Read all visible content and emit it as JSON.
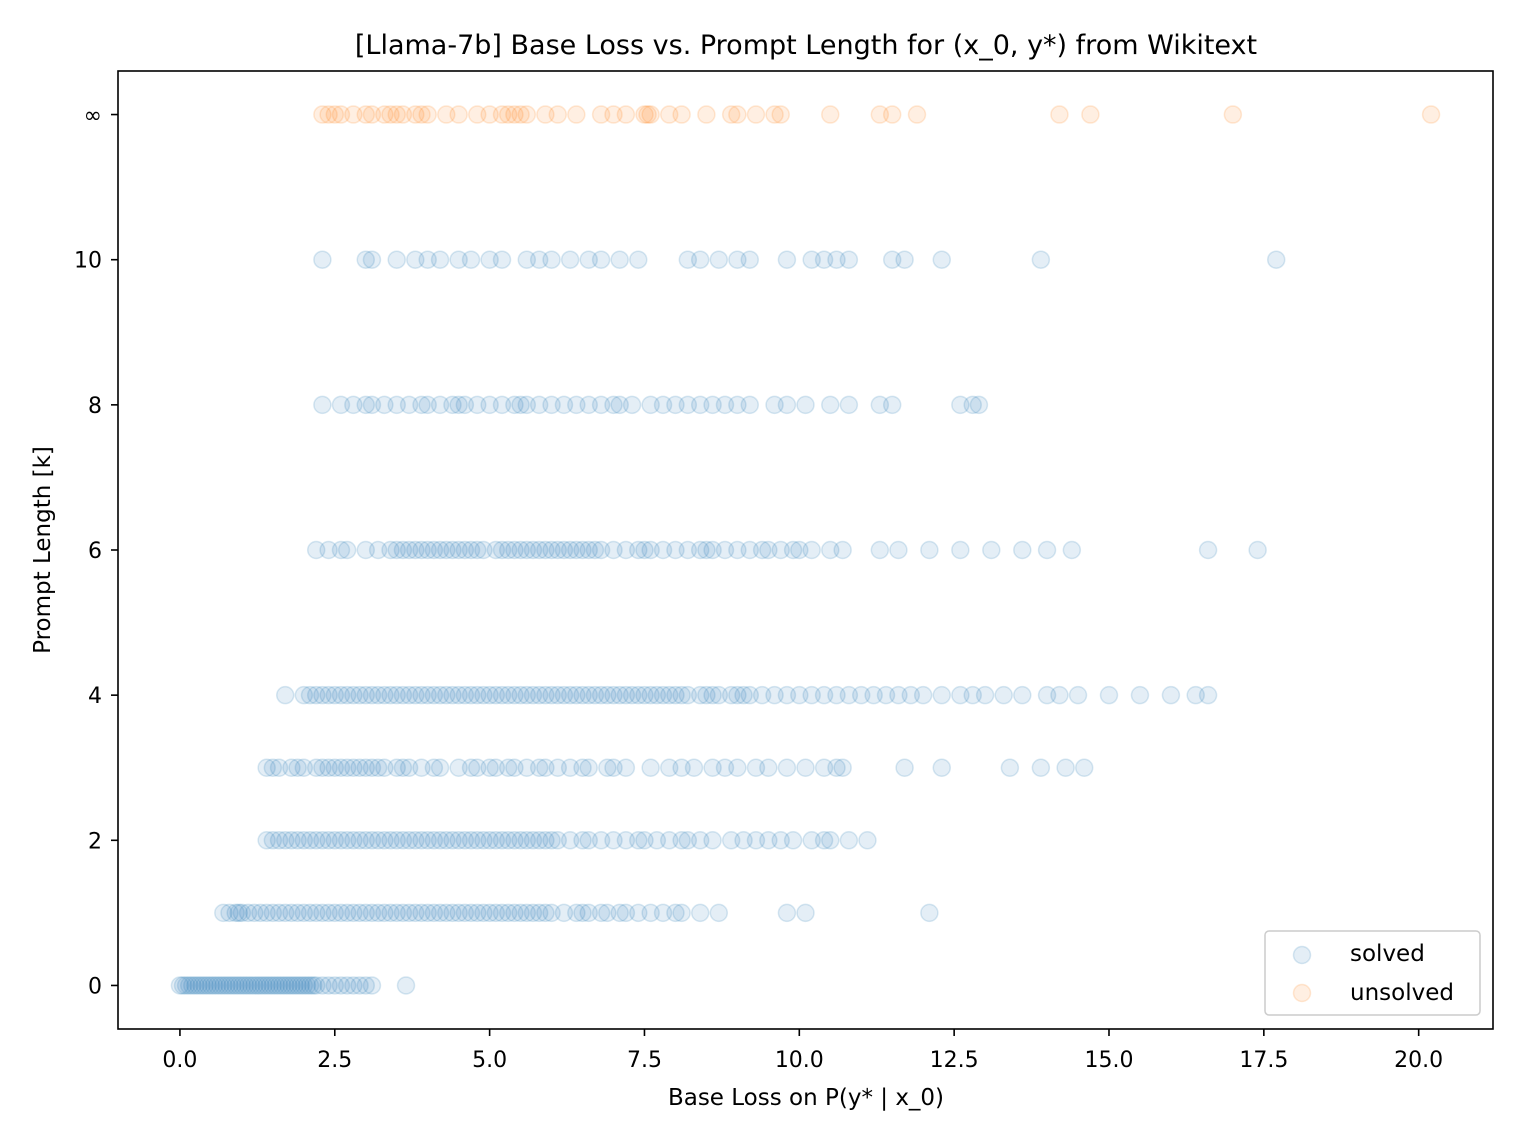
{
  "chart_data": {
    "type": "scatter",
    "title": "[Llama-7b] Base Loss vs. Prompt Length for (x_0, y*) from Wikitext",
    "xlabel": "Base Loss on P(y* | x_0)",
    "ylabel": "Prompt Length [k]",
    "xlim": [
      -1.0,
      21.2
    ],
    "ylim": [
      -0.6,
      12.6
    ],
    "x_ticks": [
      0.0,
      2.5,
      5.0,
      7.5,
      10.0,
      12.5,
      15.0,
      17.5,
      20.0
    ],
    "x_tick_labels": [
      "0.0",
      "2.5",
      "5.0",
      "7.5",
      "10.0",
      "12.5",
      "15.0",
      "17.5",
      "20.0"
    ],
    "y_ticks": [
      0,
      2,
      4,
      6,
      8,
      10,
      12
    ],
    "y_tick_labels": [
      "0",
      "2",
      "4",
      "6",
      "8",
      "10",
      "∞"
    ],
    "grid": false,
    "legend_position": "bottom-right",
    "colors": {
      "solved": "#1f77b4",
      "unsolved": "#ff7f0e"
    },
    "marker_alpha": 0.12,
    "series": [
      {
        "name": "solved",
        "color": "#1f77b4",
        "rows": [
          {
            "y": 0,
            "x": [
              0.0,
              0.05,
              0.1,
              0.15,
              0.2,
              0.25,
              0.3,
              0.35,
              0.4,
              0.45,
              0.5,
              0.55,
              0.6,
              0.65,
              0.7,
              0.75,
              0.8,
              0.85,
              0.9,
              0.95,
              1.0,
              1.05,
              1.1,
              1.15,
              1.2,
              1.25,
              1.3,
              1.35,
              1.4,
              1.45,
              1.5,
              1.55,
              1.6,
              1.65,
              1.7,
              1.75,
              1.8,
              1.85,
              1.9,
              1.95,
              2.0,
              2.05,
              2.1,
              2.15,
              2.2,
              2.3,
              2.4,
              2.5,
              2.6,
              2.7,
              2.8,
              2.9,
              3.0,
              3.1,
              3.65
            ]
          },
          {
            "y": 1,
            "x": [
              0.7,
              0.8,
              0.9,
              0.95,
              1.0,
              1.1,
              1.2,
              1.3,
              1.4,
              1.5,
              1.6,
              1.7,
              1.8,
              1.9,
              2.0,
              2.1,
              2.2,
              2.3,
              2.4,
              2.5,
              2.6,
              2.7,
              2.8,
              2.9,
              3.0,
              3.1,
              3.2,
              3.3,
              3.4,
              3.5,
              3.6,
              3.7,
              3.8,
              3.9,
              4.0,
              4.1,
              4.2,
              4.3,
              4.4,
              4.5,
              4.6,
              4.7,
              4.8,
              4.9,
              5.0,
              5.1,
              5.2,
              5.3,
              5.4,
              5.5,
              5.6,
              5.7,
              5.8,
              5.9,
              6.0,
              6.2,
              6.4,
              6.5,
              6.6,
              6.8,
              6.9,
              7.1,
              7.2,
              7.4,
              7.6,
              7.8,
              8.0,
              8.1,
              8.4,
              8.7,
              9.8,
              10.1,
              12.1
            ]
          },
          {
            "y": 2,
            "x": [
              1.4,
              1.5,
              1.6,
              1.7,
              1.8,
              1.9,
              2.0,
              2.1,
              2.2,
              2.3,
              2.4,
              2.5,
              2.6,
              2.7,
              2.8,
              2.9,
              3.0,
              3.1,
              3.2,
              3.3,
              3.4,
              3.5,
              3.6,
              3.7,
              3.8,
              3.9,
              4.0,
              4.1,
              4.2,
              4.3,
              4.4,
              4.5,
              4.6,
              4.7,
              4.8,
              4.9,
              5.0,
              5.1,
              5.2,
              5.3,
              5.4,
              5.5,
              5.6,
              5.7,
              5.8,
              5.9,
              6.0,
              6.1,
              6.3,
              6.5,
              6.6,
              6.8,
              7.0,
              7.2,
              7.4,
              7.5,
              7.7,
              7.9,
              8.1,
              8.2,
              8.4,
              8.6,
              8.9,
              9.1,
              9.3,
              9.5,
              9.7,
              9.9,
              10.2,
              10.4,
              10.5,
              10.8,
              11.1
            ]
          },
          {
            "y": 3,
            "x": [
              1.4,
              1.5,
              1.6,
              1.8,
              1.9,
              2.0,
              2.2,
              2.3,
              2.4,
              2.5,
              2.6,
              2.7,
              2.8,
              2.9,
              3.0,
              3.1,
              3.2,
              3.3,
              3.5,
              3.6,
              3.7,
              3.9,
              4.1,
              4.2,
              4.5,
              4.7,
              4.8,
              5.0,
              5.1,
              5.3,
              5.4,
              5.6,
              5.8,
              5.9,
              6.1,
              6.3,
              6.5,
              6.6,
              6.9,
              7.0,
              7.2,
              7.6,
              7.9,
              8.1,
              8.3,
              8.6,
              8.8,
              9.0,
              9.3,
              9.5,
              9.8,
              10.1,
              10.4,
              10.6,
              10.7,
              11.7,
              12.3,
              13.4,
              13.9,
              14.3,
              14.6
            ]
          },
          {
            "y": 4,
            "x": [
              1.7,
              2.0,
              2.1,
              2.2,
              2.3,
              2.4,
              2.5,
              2.6,
              2.7,
              2.8,
              2.9,
              3.0,
              3.1,
              3.2,
              3.3,
              3.4,
              3.5,
              3.6,
              3.7,
              3.8,
              3.9,
              4.0,
              4.1,
              4.2,
              4.3,
              4.4,
              4.5,
              4.6,
              4.7,
              4.8,
              4.9,
              5.0,
              5.1,
              5.2,
              5.3,
              5.4,
              5.5,
              5.6,
              5.7,
              5.8,
              5.9,
              6.0,
              6.1,
              6.2,
              6.3,
              6.4,
              6.5,
              6.6,
              6.7,
              6.8,
              6.9,
              7.0,
              7.1,
              7.2,
              7.3,
              7.4,
              7.5,
              7.6,
              7.7,
              7.8,
              7.9,
              8.0,
              8.1,
              8.2,
              8.4,
              8.5,
              8.6,
              8.7,
              8.9,
              9.0,
              9.1,
              9.2,
              9.4,
              9.6,
              9.8,
              10.0,
              10.2,
              10.4,
              10.6,
              10.8,
              11.0,
              11.2,
              11.4,
              11.6,
              11.8,
              12.0,
              12.3,
              12.6,
              12.8,
              13.0,
              13.3,
              13.6,
              14.0,
              14.2,
              14.5,
              15.0,
              15.5,
              16.0,
              16.4,
              16.6
            ]
          },
          {
            "y": 6,
            "x": [
              2.2,
              2.4,
              2.6,
              2.7,
              3.0,
              3.2,
              3.4,
              3.5,
              3.6,
              3.7,
              3.8,
              3.9,
              4.0,
              4.1,
              4.2,
              4.3,
              4.4,
              4.5,
              4.6,
              4.7,
              4.8,
              4.9,
              5.1,
              5.2,
              5.3,
              5.4,
              5.5,
              5.6,
              5.7,
              5.8,
              5.9,
              6.0,
              6.1,
              6.2,
              6.3,
              6.4,
              6.5,
              6.6,
              6.7,
              6.8,
              7.0,
              7.2,
              7.4,
              7.5,
              7.6,
              7.8,
              8.0,
              8.2,
              8.4,
              8.5,
              8.6,
              8.8,
              9.0,
              9.2,
              9.4,
              9.5,
              9.7,
              9.9,
              10.0,
              10.2,
              10.5,
              10.7,
              11.3,
              11.6,
              12.1,
              12.6,
              13.1,
              13.6,
              14.0,
              14.4,
              16.6,
              17.4
            ]
          },
          {
            "y": 8,
            "x": [
              2.3,
              2.6,
              2.8,
              3.0,
              3.1,
              3.3,
              3.5,
              3.7,
              3.9,
              4.0,
              4.2,
              4.4,
              4.5,
              4.6,
              4.8,
              5.0,
              5.2,
              5.4,
              5.5,
              5.6,
              5.8,
              6.0,
              6.2,
              6.4,
              6.6,
              6.8,
              7.0,
              7.1,
              7.3,
              7.6,
              7.8,
              8.0,
              8.2,
              8.4,
              8.6,
              8.8,
              9.0,
              9.2,
              9.6,
              9.8,
              10.1,
              10.5,
              10.8,
              11.3,
              11.5,
              12.6,
              12.8,
              12.9
            ]
          },
          {
            "y": 10,
            "x": [
              2.3,
              3.0,
              3.1,
              3.5,
              3.8,
              4.0,
              4.2,
              4.5,
              4.7,
              5.0,
              5.2,
              5.6,
              5.8,
              6.0,
              6.3,
              6.6,
              6.8,
              7.1,
              7.4,
              8.2,
              8.4,
              8.7,
              9.0,
              9.2,
              9.8,
              10.2,
              10.4,
              10.6,
              10.8,
              11.5,
              11.7,
              12.3,
              13.9,
              17.7
            ]
          }
        ]
      },
      {
        "name": "unsolved",
        "color": "#ff7f0e",
        "rows": [
          {
            "y": 12,
            "x": [
              2.3,
              2.4,
              2.5,
              2.6,
              2.8,
              3.0,
              3.1,
              3.3,
              3.4,
              3.5,
              3.6,
              3.8,
              3.9,
              4.0,
              4.3,
              4.5,
              4.8,
              5.0,
              5.2,
              5.3,
              5.4,
              5.5,
              5.6,
              5.9,
              6.1,
              6.4,
              6.8,
              7.0,
              7.2,
              7.5,
              7.55,
              7.6,
              7.9,
              8.1,
              8.5,
              8.9,
              9.0,
              9.3,
              9.6,
              9.7,
              10.5,
              11.3,
              11.5,
              11.9,
              14.2,
              14.7,
              17.0,
              20.2
            ]
          }
        ]
      }
    ]
  }
}
